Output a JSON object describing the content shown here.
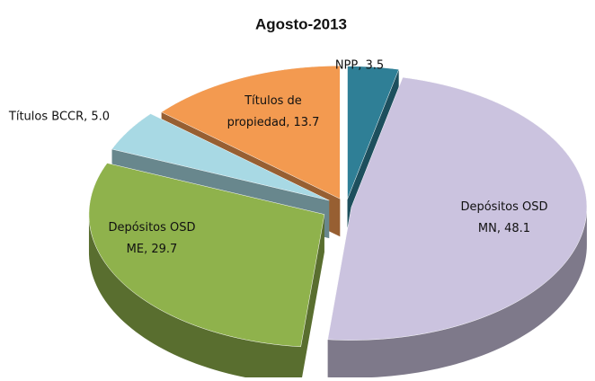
{
  "chart_data": {
    "type": "pie3d",
    "title": "Agosto-2013",
    "categories": [
      "NPP",
      "Depósitos OSD MN",
      "Depósitos OSD ME",
      "Títulos BCCR",
      "Títulos de propiedad"
    ],
    "values": [
      3.5,
      48.1,
      29.7,
      5.0,
      13.7
    ],
    "value_labels": [
      "NPP, 3.5",
      "Depósitos OSD MN, 48.1",
      "Depósitos OSD ME, 29.7",
      "Títulos BCCR, 5.0",
      "Títulos de propiedad, 13.7"
    ],
    "colors": [
      "#2f7f96",
      "#cbc3df",
      "#8fb24c",
      "#a8d9e4",
      "#f39a50"
    ]
  }
}
